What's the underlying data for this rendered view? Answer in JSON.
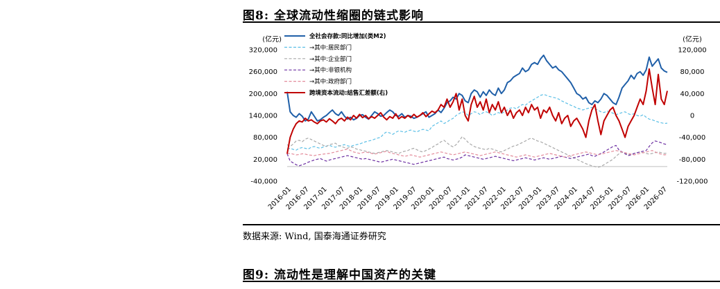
{
  "figure8": {
    "title": "图8:  全球流动性缩圈的链式影响"
  },
  "source": "数据来源:  Wind,  国泰海通证券研究",
  "figure9": {
    "title": "图9:  流动性是理解中国资产的关键"
  },
  "chart_data": {
    "type": "line",
    "left_unit": "(亿元)",
    "right_unit": "(亿元)",
    "left_ylim": [
      -40000,
      320000
    ],
    "left_ticks": [
      "320,000",
      "260,000",
      "200,000",
      "140,000",
      "80,000",
      "20,000",
      "-40,000"
    ],
    "right_ylim": [
      -120000,
      120000
    ],
    "right_ticks": [
      "120,000",
      "80,000",
      "40,000",
      "0",
      "-40,000",
      "-80,000",
      "-120,000"
    ],
    "x_ticks": [
      "2016-01",
      "2016-07",
      "2017-01",
      "2017-07",
      "2018-01",
      "2018-07",
      "2019-01",
      "2019-07",
      "2020-01",
      "2020-07",
      "2021-01",
      "2021-07",
      "2022-01",
      "2022-07",
      "2023-01",
      "2023-07",
      "2024-01",
      "2024-07",
      "2025-01",
      "2025-07",
      "2026-01",
      "2026-07"
    ],
    "legend_placement": "top-center",
    "series": [
      {
        "name": "全社会存款:同比增加(类M2)",
        "axis": "left",
        "color": "#1f5fa8",
        "style": "solid",
        "values": [
          205000,
          150000,
          140000,
          135000,
          145000,
          138000,
          125000,
          130000,
          150000,
          138000,
          125000,
          128000,
          135000,
          140000,
          148000,
          155000,
          145000,
          140000,
          150000,
          138000,
          130000,
          135000,
          128000,
          132000,
          140000,
          142000,
          135000,
          130000,
          140000,
          150000,
          145000,
          138000,
          140000,
          148000,
          155000,
          150000,
          140000,
          138000,
          145000,
          135000,
          140000,
          138000,
          132000,
          135000,
          140000,
          145000,
          150000,
          135000,
          140000,
          145000,
          155000,
          148000,
          160000,
          175000,
          180000,
          190000,
          185000,
          200000,
          195000,
          180000,
          175000,
          200000,
          210000,
          205000,
          190000,
          205000,
          195000,
          210000,
          200000,
          195000,
          215000,
          200000,
          210000,
          230000,
          235000,
          245000,
          250000,
          255000,
          270000,
          260000,
          265000,
          280000,
          285000,
          280000,
          295000,
          305000,
          290000,
          280000,
          270000,
          275000,
          265000,
          260000,
          250000,
          240000,
          230000,
          215000,
          200000,
          195000,
          185000,
          190000,
          175000,
          170000,
          180000,
          175000,
          185000,
          200000,
          195000,
          185000,
          175000,
          170000,
          190000,
          215000,
          225000,
          235000,
          250000,
          240000,
          255000,
          260000,
          250000,
          265000,
          300000,
          275000,
          285000,
          295000,
          270000,
          262000,
          258000
        ]
      },
      {
        "name": "→其中:居民部门",
        "axis": "left",
        "color": "#5bbfe6",
        "style": "dashed",
        "values": [
          48000,
          50000,
          47000,
          45000,
          50000,
          52000,
          50000,
          48000,
          53000,
          55000,
          52000,
          50000,
          54000,
          56000,
          58000,
          55000,
          53000,
          56000,
          58000,
          60000,
          57000,
          55000,
          58000,
          60000,
          62000,
          65000,
          68000,
          70000,
          72000,
          75000,
          78000,
          80000,
          90000,
          95000,
          92000,
          88000,
          94000,
          98000,
          96000,
          94000,
          98000,
          100000,
          97000,
          95000,
          99000,
          102000,
          100000,
          98000,
          110000,
          115000,
          120000,
          125000,
          118000,
          122000,
          128000,
          132000,
          140000,
          145000,
          150000,
          148000,
          140000,
          145000,
          150000,
          148000,
          142000,
          148000,
          150000,
          146000,
          140000,
          144000,
          148000,
          145000,
          150000,
          155000,
          160000,
          162000,
          158000,
          165000,
          170000,
          168000,
          175000,
          180000,
          185000,
          190000,
          195000,
          198000,
          195000,
          192000,
          190000,
          188000,
          185000,
          180000,
          176000,
          172000,
          168000,
          165000,
          160000,
          158000,
          155000,
          158000,
          160000,
          162000,
          158000,
          155000,
          150000,
          148000,
          152000,
          150000,
          146000,
          142000,
          145000,
          148000,
          150000,
          145000,
          142000,
          145000,
          140000,
          138000,
          142000,
          135000,
          130000,
          128000,
          125000,
          122000,
          120000,
          118000,
          119000
        ]
      },
      {
        "name": "→其中:企业部门",
        "axis": "left",
        "color": "#a8a8a8",
        "style": "dashed",
        "values": [
          60000,
          55000,
          62000,
          70000,
          72000,
          68000,
          75000,
          78000,
          74000,
          70000,
          66000,
          62000,
          58000,
          55000,
          60000,
          62000,
          64000,
          58000,
          55000,
          52000,
          50000,
          54000,
          52000,
          48000,
          46000,
          44000,
          42000,
          40000,
          38000,
          36000,
          38000,
          40000,
          42000,
          44000,
          42000,
          40000,
          38000,
          36000,
          40000,
          42000,
          44000,
          48000,
          50000,
          46000,
          42000,
          40000,
          44000,
          48000,
          52000,
          58000,
          62000,
          68000,
          72000,
          65000,
          58000,
          54000,
          60000,
          70000,
          82000,
          75000,
          66000,
          60000,
          55000,
          52000,
          50000,
          48000,
          46000,
          50000,
          48000,
          45000,
          42000,
          40000,
          44000,
          48000,
          52000,
          56000,
          58000,
          62000,
          66000,
          70000,
          75000,
          78000,
          74000,
          70000,
          68000,
          64000,
          60000,
          56000,
          52000,
          48000,
          44000,
          40000,
          36000,
          32000,
          28000,
          24000,
          20000,
          16000,
          12000,
          8000,
          5000,
          2000,
          0,
          -2000,
          0,
          5000,
          10000,
          15000,
          20000,
          28000,
          35000,
          40000,
          38000,
          32000,
          34000,
          36000,
          38000,
          40000,
          38000,
          36000,
          34000,
          36000,
          38000,
          40000,
          38000,
          36000,
          37000
        ]
      },
      {
        "name": "→其中:非银机构",
        "axis": "left",
        "color": "#6a2ca0",
        "style": "dashed",
        "values": [
          35000,
          15000,
          10000,
          5000,
          2000,
          5000,
          8000,
          12000,
          15000,
          18000,
          20000,
          22000,
          18000,
          15000,
          18000,
          20000,
          22000,
          24000,
          26000,
          28000,
          30000,
          28000,
          26000,
          24000,
          22000,
          20000,
          22000,
          20000,
          18000,
          16000,
          14000,
          12000,
          14000,
          16000,
          18000,
          20000,
          18000,
          16000,
          14000,
          12000,
          10000,
          8000,
          6000,
          8000,
          10000,
          12000,
          14000,
          16000,
          18000,
          20000,
          22000,
          24000,
          26000,
          22000,
          20000,
          18000,
          20000,
          22000,
          26000,
          32000,
          30000,
          28000,
          26000,
          24000,
          22000,
          20000,
          22000,
          24000,
          26000,
          28000,
          26000,
          24000,
          22000,
          20000,
          18000,
          16000,
          18000,
          20000,
          22000,
          24000,
          22000,
          20000,
          18000,
          20000,
          22000,
          24000,
          22000,
          20000,
          22000,
          24000,
          26000,
          28000,
          26000,
          24000,
          22000,
          24000,
          26000,
          28000,
          30000,
          32000,
          34000,
          30000,
          28000,
          32000,
          36000,
          40000,
          45000,
          50000,
          55000,
          58000,
          45000,
          40000,
          35000,
          30000,
          32000,
          36000,
          38000,
          40000,
          42000,
          44000,
          55000,
          65000,
          70000,
          68000,
          65000,
          62000,
          60000
        ]
      },
      {
        "name": "→其中:政府部门",
        "axis": "left",
        "color": "#e38b9a",
        "style": "dashed",
        "values": [
          35000,
          36000,
          34000,
          32000,
          33000,
          35000,
          34000,
          32000,
          31000,
          30000,
          32000,
          33000,
          34000,
          35000,
          36000,
          38000,
          40000,
          42000,
          44000,
          46000,
          48000,
          44000,
          40000,
          38000,
          36000,
          38000,
          40000,
          38000,
          36000,
          34000,
          36000,
          38000,
          40000,
          42000,
          38000,
          36000,
          34000,
          32000,
          30000,
          28000,
          30000,
          32000,
          30000,
          28000,
          26000,
          28000,
          30000,
          32000,
          34000,
          36000,
          38000,
          40000,
          38000,
          36000,
          34000,
          32000,
          34000,
          36000,
          38000,
          40000,
          38000,
          36000,
          34000,
          32000,
          30000,
          32000,
          34000,
          36000,
          38000,
          40000,
          38000,
          36000,
          34000,
          32000,
          30000,
          28000,
          26000,
          28000,
          30000,
          32000,
          30000,
          28000,
          26000,
          28000,
          30000,
          32000,
          34000,
          36000,
          34000,
          32000,
          30000,
          28000,
          26000,
          28000,
          30000,
          32000,
          34000,
          36000,
          38000,
          40000,
          38000,
          36000,
          34000,
          32000,
          34000,
          36000,
          38000,
          40000,
          42000,
          44000,
          42000,
          40000,
          38000,
          36000,
          34000,
          32000,
          34000,
          36000,
          38000,
          40000,
          42000,
          44000,
          40000,
          36000,
          34000,
          32000,
          33000
        ]
      },
      {
        "name": "跨境资本流动:结售汇差额(右)",
        "axis": "right",
        "color": "#c00000",
        "style": "solid",
        "values": [
          -70000,
          -40000,
          -25000,
          -15000,
          -10000,
          -12000,
          -5000,
          -10000,
          -8000,
          -12000,
          -15000,
          -10000,
          -8000,
          -12000,
          -6000,
          -10000,
          -15000,
          -8000,
          -5000,
          -10000,
          -3000,
          -8000,
          0,
          -5000,
          2000,
          -4000,
          0,
          -6000,
          -2000,
          -5000,
          0,
          5000,
          -3000,
          -8000,
          -2000,
          -5000,
          3000,
          -6000,
          -2000,
          -5000,
          0,
          -4000,
          2000,
          -3000,
          0,
          5000,
          -2000,
          3000,
          8000,
          5000,
          10000,
          20000,
          15000,
          30000,
          15000,
          25000,
          40000,
          10000,
          30000,
          0,
          -10000,
          20000,
          35000,
          15000,
          25000,
          10000,
          30000,
          5000,
          20000,
          10000,
          25000,
          5000,
          15000,
          0,
          10000,
          -5000,
          5000,
          10000,
          0,
          15000,
          5000,
          20000,
          10000,
          15000,
          -5000,
          10000,
          5000,
          15000,
          0,
          -10000,
          5000,
          -15000,
          -5000,
          0,
          -20000,
          -10000,
          -5000,
          -15000,
          -25000,
          -40000,
          -10000,
          10000,
          20000,
          -10000,
          -35000,
          -10000,
          0,
          10000,
          15000,
          0,
          -10000,
          -25000,
          -40000,
          -20000,
          -10000,
          0,
          15000,
          30000,
          20000,
          45000,
          85000,
          50000,
          20000,
          75000,
          30000,
          20000,
          45000
        ]
      }
    ]
  }
}
